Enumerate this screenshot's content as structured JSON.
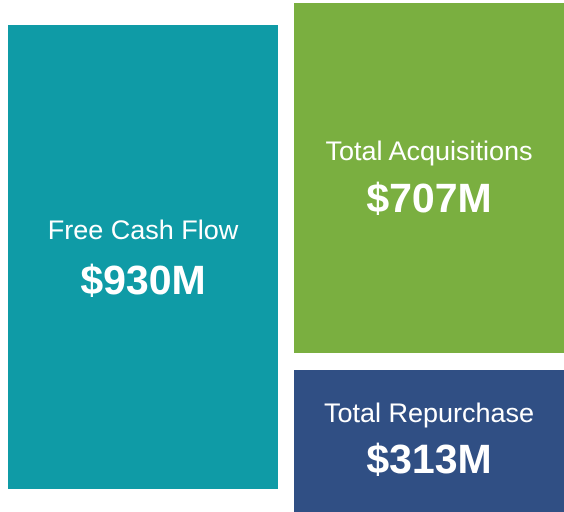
{
  "tiles": [
    {
      "label": "Free Cash Flow",
      "value": "$930M",
      "color": "#0f9ba6"
    },
    {
      "label": "Total Acquisitions",
      "value": "$707M",
      "color": "#7aaf40"
    },
    {
      "label": "Total Repurchase",
      "value": "$313M",
      "color": "#304f84"
    }
  ]
}
